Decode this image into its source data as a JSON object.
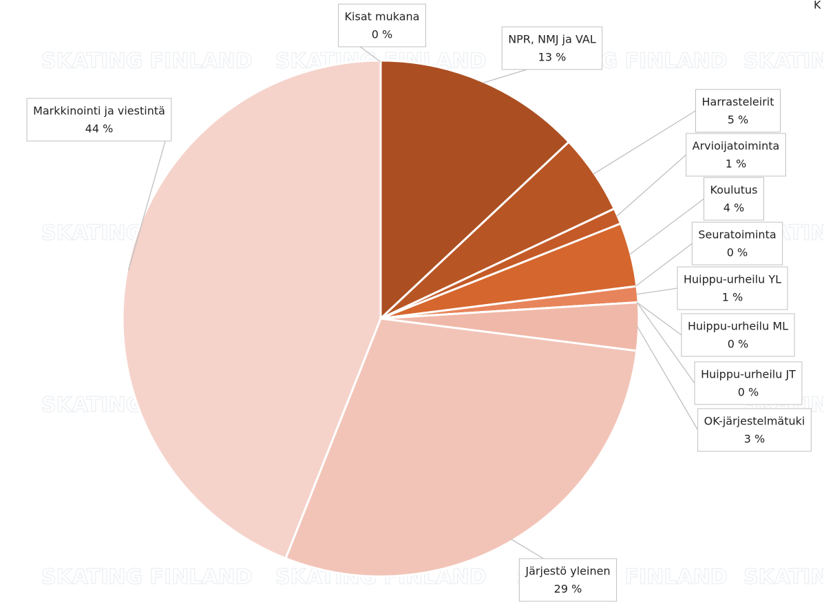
{
  "chart_data": {
    "type": "pie",
    "title": "K",
    "watermark": "SKATING FINLAND",
    "categories": [
      "NPR, NMJ ja VAL",
      "Harrasteleirit",
      "Arvioijatoiminta",
      "Koulutus",
      "Seuratoiminta",
      "Huippu-urheilu YL",
      "Huippu-urheilu ML",
      "Huippu-urheilu JT",
      "OK-järjestelmätuki",
      "Järjestö yleinen",
      "Markkinointi ja viestintä",
      "Kisat mukana"
    ],
    "values": [
      13,
      5,
      1,
      4,
      0,
      1,
      0,
      0,
      3,
      29,
      44,
      0
    ],
    "value_labels": [
      "13 %",
      "5 %",
      "1 %",
      "4 %",
      "0 %",
      "1 %",
      "0 %",
      "0 %",
      "3 %",
      "29 %",
      "44 %",
      "0 %"
    ],
    "colors": [
      "#ab4f22",
      "#b85525",
      "#c45a27",
      "#d5662e",
      "#dc6f3a",
      "#e8845b",
      "#ec9a7a",
      "#eea98f",
      "#f0b8a8",
      "#f2c4b8",
      "#f5d3cb",
      "#f7ddd6"
    ]
  }
}
